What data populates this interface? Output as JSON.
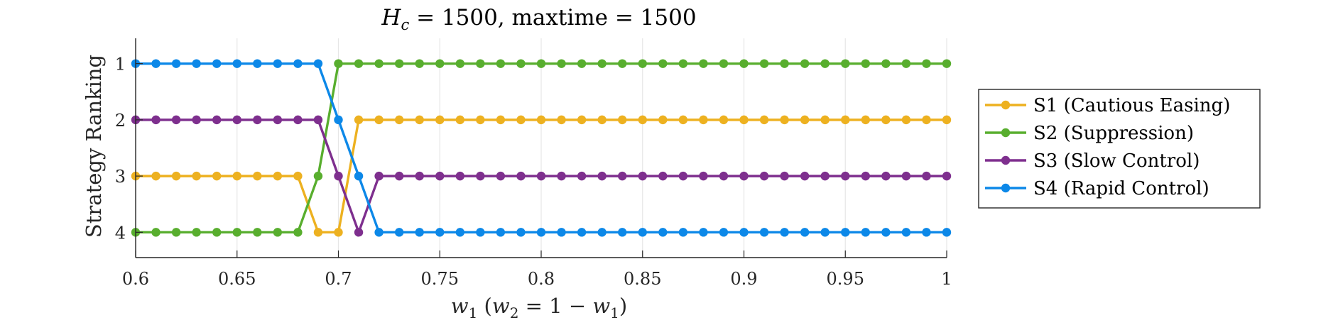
{
  "chart_data": {
    "type": "line",
    "title": "H_c = 1500, maxtime = 1500",
    "xlabel": "w_1 (w_2 = 1 − w_1)",
    "ylabel": "Strategy Ranking",
    "xlim": [
      0.6,
      1.0
    ],
    "ylim": [
      0.55,
      4.45
    ],
    "y_reversed": true,
    "grid": "vertical",
    "legend_position": "outside-right",
    "x_ticks": [
      "0.6",
      "0.65",
      "0.7",
      "0.75",
      "0.8",
      "0.85",
      "0.9",
      "0.95",
      "1"
    ],
    "y_ticks": [
      "1",
      "2",
      "3",
      "4"
    ],
    "x": [
      0.6,
      0.61,
      0.62,
      0.63,
      0.64,
      0.65,
      0.66,
      0.67,
      0.68,
      0.69,
      0.7,
      0.71,
      0.72,
      0.73,
      0.74,
      0.75,
      0.76,
      0.77,
      0.78,
      0.79,
      0.8,
      0.81,
      0.82,
      0.83,
      0.84,
      0.85,
      0.86,
      0.87,
      0.88,
      0.89,
      0.9,
      0.91,
      0.92,
      0.93,
      0.94,
      0.95,
      0.96,
      0.97,
      0.98,
      0.99,
      1.0
    ],
    "series": [
      {
        "name": "S1 (Cautious Easing)",
        "color": "#EDB120",
        "values": [
          3,
          3,
          3,
          3,
          3,
          3,
          3,
          3,
          3,
          4,
          4,
          2,
          2,
          2,
          2,
          2,
          2,
          2,
          2,
          2,
          2,
          2,
          2,
          2,
          2,
          2,
          2,
          2,
          2,
          2,
          2,
          2,
          2,
          2,
          2,
          2,
          2,
          2,
          2,
          2,
          2
        ]
      },
      {
        "name": "S2 (Suppression)",
        "color": "#58AE2E",
        "values": [
          4,
          4,
          4,
          4,
          4,
          4,
          4,
          4,
          4,
          3,
          1,
          1,
          1,
          1,
          1,
          1,
          1,
          1,
          1,
          1,
          1,
          1,
          1,
          1,
          1,
          1,
          1,
          1,
          1,
          1,
          1,
          1,
          1,
          1,
          1,
          1,
          1,
          1,
          1,
          1,
          1
        ]
      },
      {
        "name": "S3 (Slow Control)",
        "color": "#7E2F8E",
        "values": [
          2,
          2,
          2,
          2,
          2,
          2,
          2,
          2,
          2,
          2,
          3,
          4,
          3,
          3,
          3,
          3,
          3,
          3,
          3,
          3,
          3,
          3,
          3,
          3,
          3,
          3,
          3,
          3,
          3,
          3,
          3,
          3,
          3,
          3,
          3,
          3,
          3,
          3,
          3,
          3,
          3
        ]
      },
      {
        "name": "S4 (Rapid Control)",
        "color": "#0C88E8",
        "values": [
          1,
          1,
          1,
          1,
          1,
          1,
          1,
          1,
          1,
          1,
          2,
          3,
          4,
          4,
          4,
          4,
          4,
          4,
          4,
          4,
          4,
          4,
          4,
          4,
          4,
          4,
          4,
          4,
          4,
          4,
          4,
          4,
          4,
          4,
          4,
          4,
          4,
          4,
          4,
          4,
          4
        ]
      }
    ]
  }
}
